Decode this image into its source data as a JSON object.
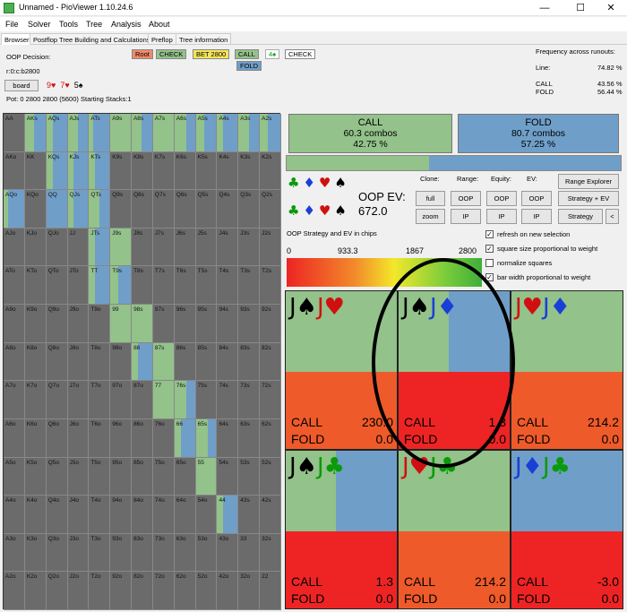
{
  "window": {
    "title": "Unnamed - PioViewer 1.10.24.6",
    "min": "—",
    "max": "☐",
    "close": "✕"
  },
  "menu": [
    "File",
    "Solver",
    "Tools",
    "Tree",
    "Analysis",
    "About"
  ],
  "tabs": [
    "Browser",
    "Postflop Tree Building and Calculations",
    "Preflop",
    "Tree information"
  ],
  "info": {
    "decision": "OOP Decision:",
    "line": "r:0:c:b2800",
    "board_btn": "board",
    "board_cards": [
      {
        "rank": "9",
        "suit": "♥",
        "color": "#d01010"
      },
      {
        "rank": "7",
        "suit": "♥",
        "color": "#d01010"
      },
      {
        "rank": "5",
        "suit": "♠",
        "color": "#000000"
      }
    ],
    "pot": "Pot: 0 2800 2800 (5600) Starting Stacks:1"
  },
  "nodes": {
    "root": "Root",
    "check1": "CHECK",
    "bet": "BET 2800",
    "call": "CALL",
    "fold": "FOLD",
    "spade": "4♠",
    "check2": "CHECK"
  },
  "freq": {
    "title": "Frequency across runouts:",
    "line_label": "Line:",
    "line_val": "74.82 %",
    "call_label": "CALL",
    "call_val": "43.56 %",
    "fold_label": "FOLD",
    "fold_val": "56.44 %"
  },
  "colors": {
    "call": "#93c28a",
    "fold": "#6f9fc8",
    "raise": "#ee3b2b"
  },
  "grid_rows": [
    [
      "AA",
      "AKs",
      "AQs",
      "AJs",
      "ATs",
      "A9s",
      "A8s",
      "A7s",
      "A6s",
      "A5s",
      "A4s",
      "A3s",
      "A2s"
    ],
    [
      "AKo",
      "KK",
      "KQs",
      "KJs",
      "KTs",
      "K9s",
      "K8s",
      "K7s",
      "K6s",
      "K5s",
      "K4s",
      "K3s",
      "K2s"
    ],
    [
      "AQo",
      "KQo",
      "QQ",
      "QJs",
      "QTs",
      "Q9s",
      "Q8s",
      "Q7s",
      "Q6s",
      "Q5s",
      "Q4s",
      "Q3s",
      "Q2s"
    ],
    [
      "AJo",
      "KJo",
      "QJo",
      "JJ",
      "JTs",
      "J9s",
      "J8s",
      "J7s",
      "J6s",
      "J5s",
      "J4s",
      "J3s",
      "J2s"
    ],
    [
      "ATo",
      "KTo",
      "QTo",
      "JTo",
      "TT",
      "T9s",
      "T8s",
      "T7s",
      "T6s",
      "T5s",
      "T4s",
      "T3s",
      "T2s"
    ],
    [
      "A9o",
      "K9o",
      "Q9o",
      "J9o",
      "T9o",
      "99",
      "98s",
      "97s",
      "96s",
      "95s",
      "94s",
      "93s",
      "92s"
    ],
    [
      "A8o",
      "K8o",
      "Q8o",
      "J8o",
      "T8o",
      "98o",
      "88",
      "87s",
      "86s",
      "85s",
      "84s",
      "83s",
      "82s"
    ],
    [
      "A7o",
      "K7o",
      "Q7o",
      "J7o",
      "T7o",
      "97o",
      "87o",
      "77",
      "76s",
      "75s",
      "74s",
      "73s",
      "72s"
    ],
    [
      "A6o",
      "K6o",
      "Q6o",
      "J6o",
      "T6o",
      "96o",
      "86o",
      "76o",
      "66",
      "65s",
      "64s",
      "63s",
      "62s"
    ],
    [
      "A5o",
      "K5o",
      "Q5o",
      "J5o",
      "T5o",
      "95o",
      "85o",
      "75o",
      "65o",
      "55",
      "54s",
      "53s",
      "52s"
    ],
    [
      "A4o",
      "K4o",
      "Q4o",
      "J4o",
      "T4o",
      "94o",
      "84o",
      "74o",
      "64o",
      "54o",
      "44",
      "43s",
      "42s"
    ],
    [
      "A3o",
      "K3o",
      "Q3o",
      "J3o",
      "T3o",
      "93o",
      "83o",
      "73o",
      "63o",
      "53o",
      "43o",
      "33",
      "32s"
    ],
    [
      "A2o",
      "K2o",
      "Q2o",
      "J2o",
      "T2o",
      "92o",
      "82o",
      "72o",
      "62o",
      "52o",
      "42o",
      "32o",
      "22"
    ]
  ],
  "actions": {
    "call_name": "CALL",
    "call_combos": "60.3 combos",
    "call_pct": "42.75 %",
    "fold_name": "FOLD",
    "fold_combos": "80.7 combos",
    "fold_pct": "57.25 %",
    "call_fraction": 0.4275
  },
  "controls": {
    "clone": "Clone:",
    "range": "Range:",
    "equity": "Equity:",
    "ev": "EV:",
    "full": "full",
    "zoom": "zoom",
    "oop": "OOP",
    "ip": "IP",
    "range_explorer": "Range Explorer",
    "strategy_ev": "Strategy + EV",
    "strategy": "Strategy",
    "arrow": "<",
    "ev_label": "OOP EV:",
    "ev_value": "672.0"
  },
  "suit_icons": [
    "♣",
    "♦",
    "♥",
    "♠"
  ],
  "gradient": {
    "title": "OOP Strategy and EV in chips",
    "ticks": [
      "0",
      "933.3",
      "1867",
      "2800"
    ]
  },
  "checkboxes": [
    {
      "label": "refresh on new selection",
      "checked": true
    },
    {
      "label": "square size proportional to weight",
      "checked": true
    },
    {
      "label": "normalize squares",
      "checked": false
    },
    {
      "label": "bar width proportional to weight",
      "checked": true
    }
  ],
  "hands": [
    {
      "c1r": "J",
      "c1s": "♠",
      "c1c": "suit-s",
      "c2r": "J",
      "c2s": "♥",
      "c2c": "suit-h",
      "call_label": "CALL",
      "call_val": "230.0",
      "fold_label": "FOLD",
      "fold_val": "0.0",
      "call_frac": 1.0,
      "body": "#ef5a2a"
    },
    {
      "c1r": "J",
      "c1s": "♠",
      "c1c": "suit-s",
      "c2r": "J",
      "c2s": "♦",
      "c2c": "suit-d",
      "call_label": "CALL",
      "call_val": "1.3",
      "fold_label": "FOLD",
      "fold_val": "0.0",
      "call_frac": 0.45,
      "body": "#ee2424"
    },
    {
      "c1r": "J",
      "c1s": "♥",
      "c1c": "suit-h",
      "c2r": "J",
      "c2s": "♦",
      "c2c": "suit-d",
      "call_label": "CALL",
      "call_val": "214.2",
      "fold_label": "FOLD",
      "fold_val": "0.0",
      "call_frac": 1.0,
      "body": "#ef5a2a"
    },
    {
      "c1r": "J",
      "c1s": "♠",
      "c1c": "suit-s",
      "c2r": "J",
      "c2s": "♣",
      "c2c": "suit-c",
      "call_label": "CALL",
      "call_val": "1.3",
      "fold_label": "FOLD",
      "fold_val": "0.0",
      "call_frac": 0.45,
      "body": "#ee2424"
    },
    {
      "c1r": "J",
      "c1s": "♥",
      "c1c": "suit-h",
      "c2r": "J",
      "c2s": "♣",
      "c2c": "suit-c",
      "call_label": "CALL",
      "call_val": "214.2",
      "fold_label": "FOLD",
      "fold_val": "0.0",
      "call_frac": 1.0,
      "body": "#ef5a2a"
    },
    {
      "c1r": "J",
      "c1s": "♦",
      "c1c": "suit-d",
      "c2r": "J",
      "c2s": "♣",
      "c2c": "suit-c",
      "call_label": "CALL",
      "call_val": "-3.0",
      "fold_label": "FOLD",
      "fold_val": "0.0",
      "call_frac": 0.0,
      "body": "#ee2424"
    }
  ]
}
